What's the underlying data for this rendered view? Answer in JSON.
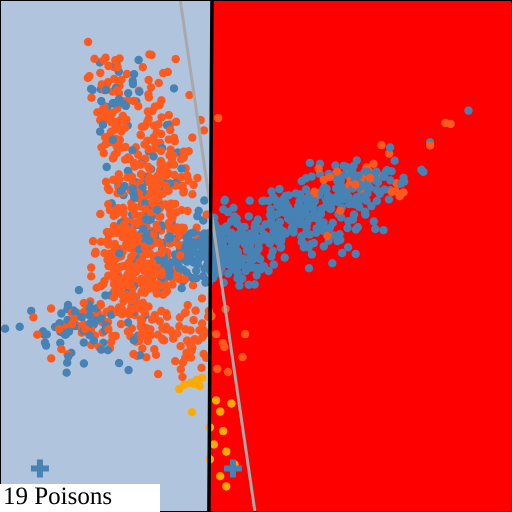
{
  "caption": "19 Poisons",
  "colors": {
    "region_left": "#b0c4de",
    "region_right": "#ff0000",
    "boundary_clean": "#000000",
    "boundary_original": "#a9a9a9",
    "class_blue": "#4682b4",
    "class_orange": "#ff5a1e",
    "poison": "#ffaa00",
    "frame": "#000000"
  },
  "chart_data": {
    "type": "scatter",
    "title": "",
    "xlabel": "",
    "ylabel": "",
    "xlim": [
      0,
      1
    ],
    "ylim": [
      0,
      1
    ],
    "grid": false,
    "legend": null,
    "decision_boundaries": [
      {
        "role": "current",
        "points": [
          [
            0.414,
            1.0
          ],
          [
            0.408,
            0.0
          ]
        ]
      },
      {
        "role": "original",
        "points": [
          [
            0.352,
            1.0
          ],
          [
            0.498,
            0.0
          ]
        ]
      }
    ],
    "class_centers": [
      {
        "marker": "plus",
        "color": "#4682b4",
        "x": 0.078,
        "y": 0.085
      },
      {
        "marker": "plus",
        "color": "#4682b4",
        "x": 0.455,
        "y": 0.085
      }
    ],
    "series": [
      {
        "color": "#ff5a1e",
        "clusters": [
          {
            "cx": 0.268,
            "cy": 0.475,
            "sx": 0.04,
            "sy": 0.07,
            "n": 300
          },
          {
            "cx": 0.3,
            "cy": 0.66,
            "sx": 0.045,
            "sy": 0.09,
            "n": 220
          },
          {
            "cx": 0.218,
            "cy": 0.79,
            "sx": 0.02,
            "sy": 0.06,
            "n": 60
          },
          {
            "cx": 0.2,
            "cy": 0.37,
            "sx": 0.07,
            "sy": 0.025,
            "n": 50
          },
          {
            "cx": 0.38,
            "cy": 0.34,
            "sx": 0.04,
            "sy": 0.04,
            "n": 60
          },
          {
            "cx": 0.68,
            "cy": 0.64,
            "sx": 0.06,
            "sy": 0.025,
            "n": 30
          }
        ]
      },
      {
        "color": "#4682b4",
        "clusters": [
          {
            "cx": 0.43,
            "cy": 0.505,
            "sx": 0.055,
            "sy": 0.03,
            "n": 240
          },
          {
            "cx": 0.58,
            "cy": 0.57,
            "sx": 0.07,
            "sy": 0.035,
            "n": 200
          },
          {
            "cx": 0.7,
            "cy": 0.64,
            "sx": 0.05,
            "sy": 0.025,
            "n": 80
          },
          {
            "cx": 0.28,
            "cy": 0.56,
            "sx": 0.05,
            "sy": 0.08,
            "n": 100
          },
          {
            "cx": 0.16,
            "cy": 0.36,
            "sx": 0.06,
            "sy": 0.035,
            "n": 60
          },
          {
            "cx": 0.23,
            "cy": 0.82,
            "sx": 0.03,
            "sy": 0.04,
            "n": 25
          }
        ]
      }
    ],
    "poison_points": {
      "color": "#ffaa00",
      "values": [
        [
          0.36,
          0.248
        ],
        [
          0.372,
          0.252
        ],
        [
          0.384,
          0.258
        ],
        [
          0.39,
          0.246
        ],
        [
          0.395,
          0.262
        ],
        [
          0.35,
          0.24
        ],
        [
          0.38,
          0.25
        ],
        [
          0.375,
          0.195
        ],
        [
          0.422,
          0.218
        ],
        [
          0.452,
          0.212
        ],
        [
          0.43,
          0.196
        ],
        [
          0.41,
          0.165
        ],
        [
          0.436,
          0.158
        ],
        [
          0.418,
          0.132
        ],
        [
          0.442,
          0.118
        ],
        [
          0.41,
          0.103
        ],
        [
          0.43,
          0.07
        ],
        [
          0.458,
          0.093
        ],
        [
          0.442,
          0.05
        ]
      ]
    },
    "outliers": [
      {
        "color": "#4682b4",
        "values": [
          [
            0.195,
            0.878
          ],
          [
            0.232,
            0.86
          ],
          [
            0.262,
            0.855
          ],
          [
            0.915,
            0.784
          ],
          [
            0.84,
            0.722
          ],
          [
            0.762,
            0.712
          ],
          [
            0.09,
            0.325
          ],
          [
            0.13,
            0.272
          ],
          [
            0.25,
            0.37
          ]
        ]
      },
      {
        "color": "#ff5a1e",
        "values": [
          [
            0.172,
            0.918
          ],
          [
            0.84,
            0.716
          ],
          [
            0.87,
            0.76
          ],
          [
            0.88,
            0.758
          ],
          [
            0.76,
            0.7
          ],
          [
            0.1,
            0.3
          ],
          [
            0.12,
            0.318
          ],
          [
            0.132,
            0.308
          ]
        ]
      }
    ]
  }
}
